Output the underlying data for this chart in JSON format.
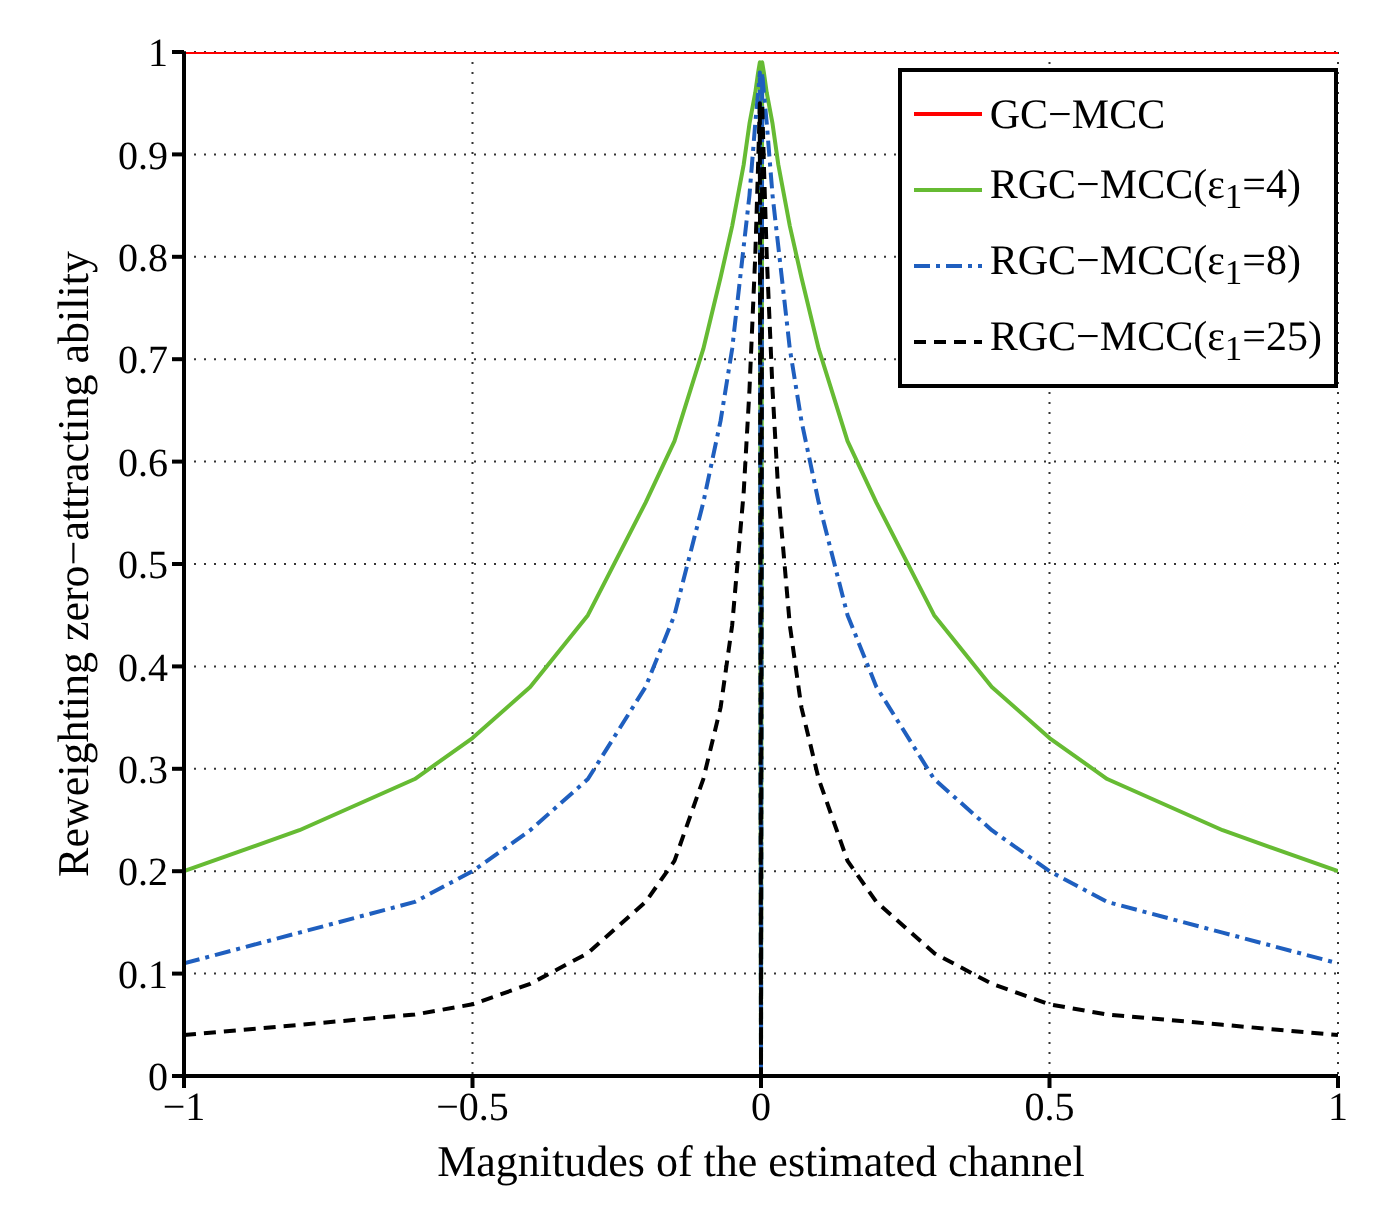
{
  "chart_data": {
    "type": "line",
    "xlabel": "Magnitudes of the estimated channel",
    "ylabel": "Reweighting zero−attracting ability",
    "xlim": [
      -1,
      1
    ],
    "ylim": [
      0,
      1
    ],
    "xticks": [
      -1,
      -0.5,
      0,
      0.5,
      1
    ],
    "yticks": [
      0,
      0.1,
      0.2,
      0.3,
      0.4,
      0.5,
      0.6,
      0.7,
      0.8,
      0.9,
      1
    ],
    "grid": true,
    "legend": "top right",
    "marker": "none",
    "series": [
      {
        "name": "GC−MCC",
        "color": "#ff0000",
        "line_style": "solid",
        "x": [
          -1,
          1
        ],
        "values": [
          1,
          1
        ]
      },
      {
        "name": "RGC−MCC(ε$_{1}$=4)",
        "color": "#66bb33",
        "line_style": "solid",
        "x": [
          -1,
          -0.8,
          -0.6,
          -0.5,
          -0.4,
          -0.3,
          -0.2,
          -0.15,
          -0.1,
          -0.07,
          -0.05,
          -0.03,
          -0.02,
          -0.01,
          -0.005,
          -0.002,
          0,
          0.002,
          0.005,
          0.01,
          0.02,
          0.03,
          0.05,
          0.07,
          0.1,
          0.15,
          0.2,
          0.3,
          0.4,
          0.5,
          0.6,
          0.8,
          1
        ],
        "values": [
          0.2,
          0.24,
          0.29,
          0.33,
          0.38,
          0.45,
          0.56,
          0.62,
          0.71,
          0.78,
          0.83,
          0.89,
          0.93,
          0.96,
          0.98,
          0.99,
          0,
          0.99,
          0.98,
          0.96,
          0.93,
          0.89,
          0.83,
          0.78,
          0.71,
          0.62,
          0.56,
          0.45,
          0.38,
          0.33,
          0.29,
          0.24,
          0.2
        ]
      },
      {
        "name": "RGC−MCC(ε$_{1}$=8)",
        "color": "#1f5fbf",
        "line_style": "dashdot",
        "x": [
          -1,
          -0.8,
          -0.6,
          -0.5,
          -0.4,
          -0.3,
          -0.2,
          -0.15,
          -0.1,
          -0.07,
          -0.05,
          -0.03,
          -0.02,
          -0.01,
          -0.005,
          -0.002,
          0,
          0.002,
          0.005,
          0.01,
          0.02,
          0.03,
          0.05,
          0.07,
          0.1,
          0.15,
          0.2,
          0.3,
          0.4,
          0.5,
          0.6,
          0.8,
          1
        ],
        "values": [
          0.11,
          0.14,
          0.17,
          0.2,
          0.24,
          0.29,
          0.38,
          0.45,
          0.56,
          0.64,
          0.71,
          0.81,
          0.86,
          0.93,
          0.96,
          0.98,
          0,
          0.98,
          0.96,
          0.93,
          0.86,
          0.81,
          0.71,
          0.64,
          0.56,
          0.45,
          0.38,
          0.29,
          0.24,
          0.2,
          0.17,
          0.14,
          0.11
        ]
      },
      {
        "name": "RGC−MCC(ε$_{1}$=25)",
        "color": "#000000",
        "line_style": "dashed",
        "x": [
          -1,
          -0.8,
          -0.6,
          -0.5,
          -0.4,
          -0.3,
          -0.2,
          -0.15,
          -0.1,
          -0.07,
          -0.05,
          -0.03,
          -0.02,
          -0.01,
          -0.005,
          -0.002,
          0,
          0.002,
          0.005,
          0.01,
          0.02,
          0.03,
          0.05,
          0.07,
          0.1,
          0.15,
          0.2,
          0.3,
          0.4,
          0.5,
          0.6,
          0.8,
          1
        ],
        "values": [
          0.04,
          0.05,
          0.06,
          0.07,
          0.09,
          0.12,
          0.17,
          0.21,
          0.29,
          0.36,
          0.44,
          0.57,
          0.67,
          0.8,
          0.89,
          0.95,
          0,
          0.95,
          0.89,
          0.8,
          0.67,
          0.57,
          0.44,
          0.36,
          0.29,
          0.21,
          0.17,
          0.12,
          0.09,
          0.07,
          0.06,
          0.05,
          0.04
        ]
      }
    ]
  }
}
